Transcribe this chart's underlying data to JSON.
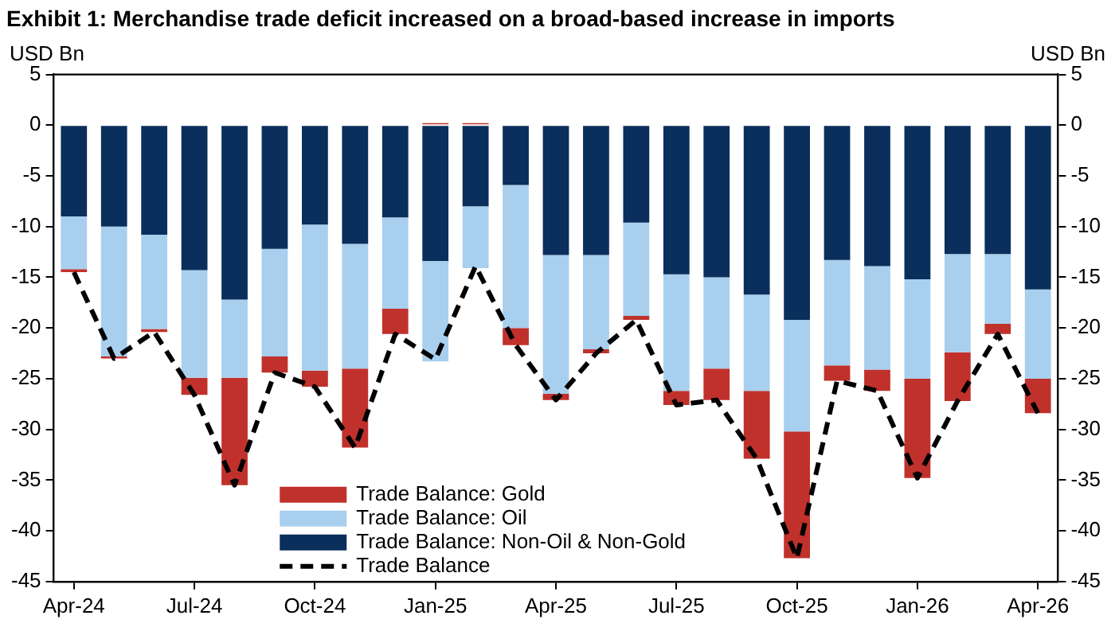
{
  "chart_data": {
    "type": "bar",
    "title": "Exhibit 1: Merchandise trade deficit increased on a broad-based increase in imports",
    "ylabel": "USD Bn",
    "y2label": "USD Bn",
    "categories": [
      "Apr-24",
      null,
      null,
      "Jul-24",
      null,
      null,
      "Oct-24",
      null,
      null,
      "Jan-25",
      null,
      null,
      "Apr-25",
      null,
      null,
      "Jul-25",
      null,
      null,
      "Oct-25",
      null,
      null,
      "Jan-26",
      null,
      null,
      "Apr-26"
    ],
    "stacked": true,
    "ylim": [
      -45,
      5
    ],
    "yticks": [
      -45,
      -40,
      -35,
      -30,
      -25,
      -20,
      -15,
      -10,
      -5,
      0,
      5
    ],
    "y2lim": [
      -45,
      5
    ],
    "y2ticks": [
      -45,
      -40,
      -35,
      -30,
      -25,
      -20,
      -15,
      -10,
      -5,
      0,
      5
    ],
    "grid": false,
    "legend": "bottom left",
    "series": [
      {
        "name": "Trade Balance: Non-Oil & Non-Gold",
        "color": "#0b2f5c",
        "values": [
          -9.0,
          -10.0,
          -10.8,
          -14.3,
          -17.2,
          -12.2,
          -9.8,
          -11.7,
          -9.1,
          -13.4,
          -8.0,
          -5.9,
          -12.8,
          -12.8,
          -9.6,
          -14.7,
          -15.0,
          -16.7,
          -19.2,
          -13.3,
          -13.9,
          -15.2,
          -12.7,
          -12.7,
          -16.2
        ]
      },
      {
        "name": "Trade Balance: Oil",
        "color": "#a9cfee",
        "values": [
          -5.2,
          -12.8,
          -9.3,
          -10.6,
          -7.7,
          -10.6,
          -14.4,
          -12.3,
          -9.0,
          -9.9,
          -6.1,
          -14.1,
          -13.7,
          -9.3,
          -9.2,
          -11.5,
          -9.0,
          -9.5,
          -11.0,
          -10.4,
          -10.2,
          -9.8,
          -9.7,
          -6.9,
          -8.8
        ]
      },
      {
        "name": "Trade Balance: Gold",
        "color": "#c0312b",
        "values": [
          -0.3,
          -0.2,
          -0.3,
          -1.7,
          -10.6,
          -1.6,
          -1.6,
          -7.8,
          -2.5,
          0.2,
          0.2,
          -1.7,
          -0.6,
          -0.4,
          -0.4,
          -1.4,
          -3.1,
          -6.7,
          -12.5,
          -1.5,
          -2.1,
          -9.8,
          -4.8,
          -1.0,
          -3.4
        ]
      },
      {
        "name": "Trade Balance",
        "type": "line",
        "color": "#000000",
        "line_style": "dashed",
        "marker": "none",
        "values": [
          -14.5,
          -23.0,
          -20.4,
          -26.6,
          -35.5,
          -24.4,
          -25.8,
          -31.8,
          -20.6,
          -23.1,
          -13.9,
          -21.7,
          -27.1,
          -22.5,
          -19.2,
          -27.6,
          -27.1,
          -32.9,
          -42.7,
          -25.2,
          -26.2,
          -34.8,
          -27.2,
          -20.6,
          -28.4
        ]
      }
    ]
  }
}
